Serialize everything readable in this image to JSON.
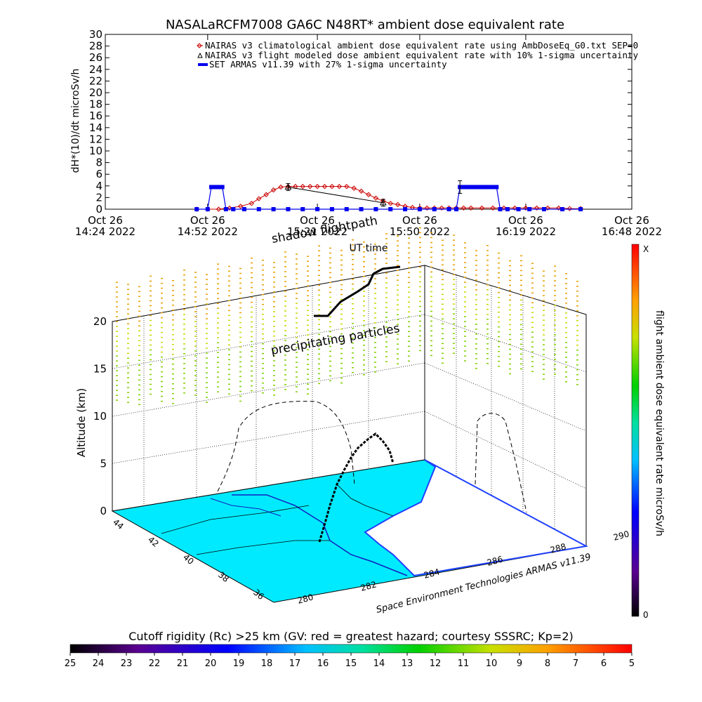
{
  "top_chart": {
    "title": "NASALaRCFM7008  GA6C N48RT* ambient dose equivalent rate",
    "ylabel": "dH*(10)/dt microSv/h",
    "xlabel": "UT time",
    "legend": [
      "NAIRAS v3 climatological ambient dose equivalent rate using AmbDoseEq_G0.txt SEP=0",
      "NAIRAS v3 flight modeled dose ambient equivalent rate with 10% 1-sigma uncertainty",
      "SET ARMAS v11.39 with 27% 1-sigma uncertainty"
    ]
  },
  "chart_data": [
    {
      "type": "line",
      "title": "NASALaRCFM7008  GA6C N48RT* ambient dose equivalent rate",
      "ylabel": "dH*(10)/dt microSv/h",
      "xlabel": "UT time",
      "ylim": [
        0,
        30
      ],
      "yticks": [
        0,
        2,
        4,
        6,
        8,
        10,
        12,
        14,
        16,
        18,
        20,
        22,
        24,
        26,
        28,
        30
      ],
      "xlim_minutes": [
        0,
        144
      ],
      "xticks": [
        {
          "t": 0,
          "line1": "Oct 26",
          "line2": "14:24 2022"
        },
        {
          "t": 28,
          "line1": "Oct 26",
          "line2": "14:52 2022"
        },
        {
          "t": 58,
          "line1": "Oct 26",
          "line2": "15:21 2022"
        },
        {
          "t": 86,
          "line1": "Oct 26",
          "line2": "15:50 2022"
        },
        {
          "t": 115,
          "line1": "Oct 26",
          "line2": "16:19 2022"
        },
        {
          "t": 144,
          "line1": "Oct 26",
          "line2": "16:48 2022"
        }
      ],
      "series": [
        {
          "name": "NAIRAS v3 climatological ambient dose equivalent rate using AmbDoseEq_G0.txt SEP=0",
          "color": "#cc0000",
          "marker": "diamond",
          "x": [
            25,
            28,
            31,
            34,
            37,
            40,
            42,
            44,
            46,
            48,
            50,
            52,
            54,
            56,
            58,
            60,
            62,
            64,
            66,
            68,
            70,
            72,
            74,
            76,
            78,
            80,
            82,
            84,
            86,
            88,
            90,
            92,
            94,
            96,
            98,
            100,
            103,
            106,
            109,
            112,
            115,
            118,
            121,
            124,
            127,
            130
          ],
          "y": [
            0,
            0,
            0,
            0.2,
            0.5,
            1,
            1.8,
            2.5,
            3.3,
            3.8,
            3.9,
            3.9,
            3.9,
            3.9,
            3.9,
            3.9,
            3.9,
            3.9,
            3.9,
            3.6,
            3.1,
            2.5,
            1.9,
            1.4,
            1,
            0.8,
            0.5,
            0.3,
            0.2,
            0.2,
            0.2,
            0.2,
            0.2,
            0.2,
            0.2,
            0.2,
            0.2,
            0.2,
            0.2,
            0.2,
            0.2,
            0.2,
            0.2,
            0.2,
            0.1,
            0.1
          ]
        },
        {
          "name": "NAIRAS v3 flight modeled dose ambient equivalent rate with 10% 1-sigma uncertainty",
          "color": "#000000",
          "marker": "triangle",
          "x": [
            50,
            76
          ],
          "y": [
            3.8,
            1.1
          ]
        },
        {
          "name": "SET ARMAS v11.39 with 27% 1-sigma uncertainty",
          "color": "#0000ee",
          "marker": "square",
          "x": [
            25,
            28,
            29,
            30,
            31,
            32,
            33,
            35,
            38,
            42,
            46,
            50,
            54,
            58,
            62,
            66,
            70,
            74,
            78,
            82,
            86,
            90,
            94,
            96,
            97,
            98,
            99,
            100,
            101,
            102,
            103,
            104,
            105,
            106,
            107,
            108,
            110,
            113,
            116,
            120,
            125,
            130
          ],
          "y": [
            0,
            0,
            3.8,
            3.8,
            3.8,
            3.8,
            0,
            0,
            0,
            0,
            0,
            0,
            0,
            0,
            0,
            0,
            0,
            0,
            0,
            0,
            0,
            0,
            0,
            0,
            3.8,
            3.8,
            3.8,
            3.8,
            3.8,
            3.8,
            3.8,
            3.8,
            3.8,
            3.8,
            3.8,
            0,
            0,
            0,
            0,
            0,
            0,
            0
          ]
        }
      ]
    },
    {
      "type": "3d-scatter",
      "title": "",
      "zlabel": "Altitude (km)",
      "zticks": [
        0,
        5,
        10,
        15,
        20
      ],
      "lat_ticks": [
        44,
        42,
        40,
        38,
        36
      ],
      "lon_ticks": [
        280,
        282,
        284,
        286,
        288,
        290
      ],
      "annotations": [
        "shadow flightpath",
        "precipitating particles"
      ],
      "credit": "Space Environment Technologies ARMAS v11.39"
    }
  ],
  "side_colorbar": {
    "label": "flight ambient dose equivalent rate microSv/h",
    "top_label": "X",
    "bottom_label": "0"
  },
  "bottom_colorbar": {
    "title": "Cutoff rigidity (Rc) >25 km (GV: red = greatest hazard; courtesy SSSRC; Kp=2)",
    "ticks": [
      "25",
      "24",
      "23",
      "22",
      "21",
      "20",
      "19",
      "18",
      "17",
      "16",
      "15",
      "14",
      "13",
      "12",
      "11",
      "10",
      "9",
      "8",
      "7",
      "6",
      "5"
    ]
  }
}
